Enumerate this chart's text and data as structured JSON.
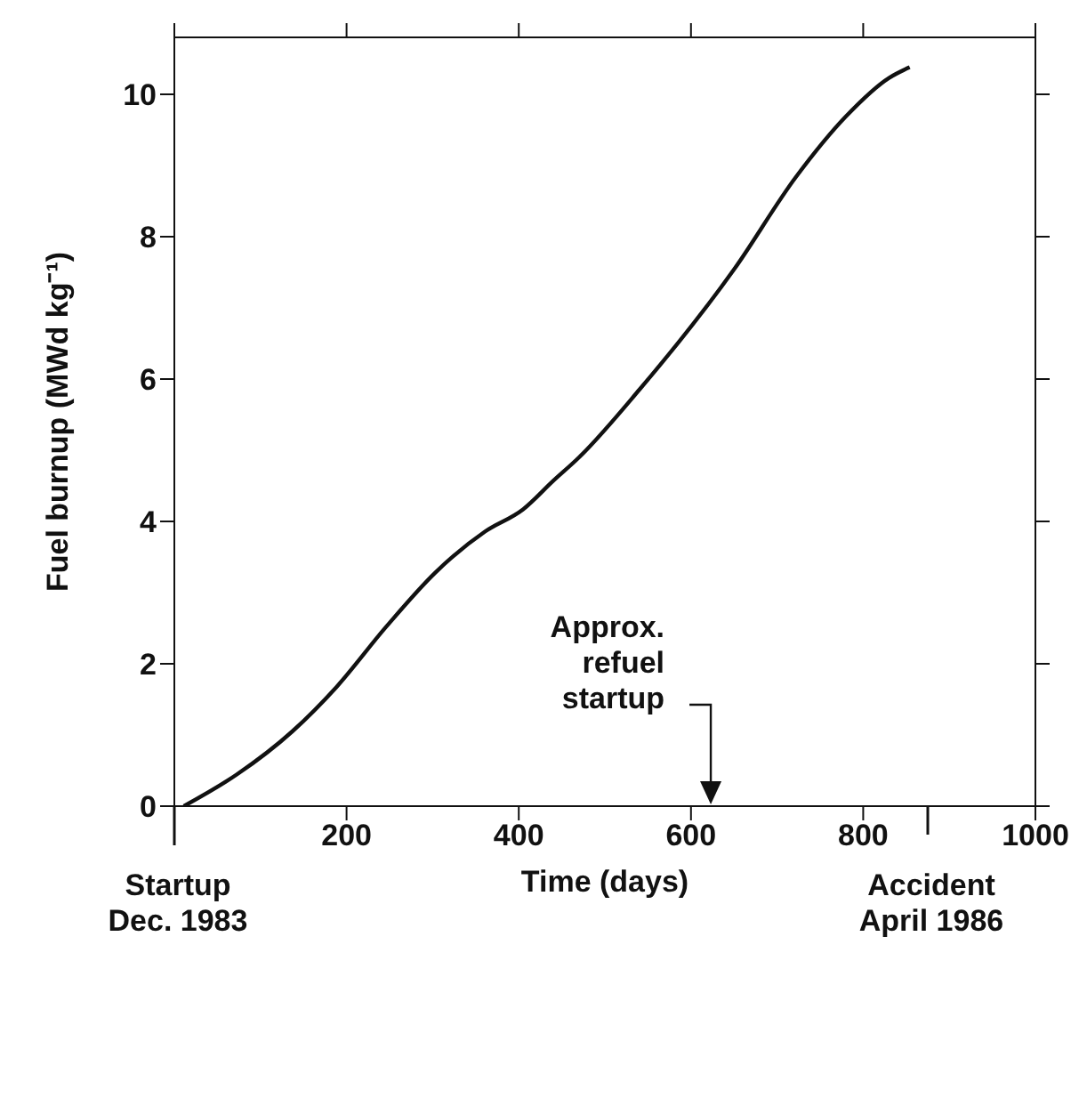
{
  "chart_data": {
    "type": "line",
    "xlabel": "Time (days)",
    "ylabel": "Fuel burnup (MWd kg⁻¹)",
    "x": [
      11,
      72,
      137,
      188,
      246,
      303,
      361,
      405,
      440,
      470,
      540,
      650,
      722,
      780,
      830,
      854
    ],
    "series": [
      {
        "color": "#111111",
        "values": [
          0,
          0.44,
          1.05,
          1.67,
          2.52,
          3.28,
          3.86,
          4.17,
          4.57,
          4.9,
          5.85,
          7.54,
          8.84,
          9.69,
          10.23,
          10.38
        ]
      }
    ],
    "xlim": [
      0,
      1000
    ],
    "xticks": [
      {
        "value": 0,
        "label": null
      },
      200,
      400,
      600,
      800,
      1000
    ],
    "ylim": [
      0,
      10.8
    ],
    "yticks": [
      0,
      2,
      4,
      6,
      8,
      10
    ],
    "grid": false,
    "legend": false,
    "marker": "none",
    "line_style": "solid",
    "annotations": [
      "Startup\nDec. 1983",
      "Accident\nApril 1986",
      "Approx.\nrefuel\nstartup"
    ]
  }
}
